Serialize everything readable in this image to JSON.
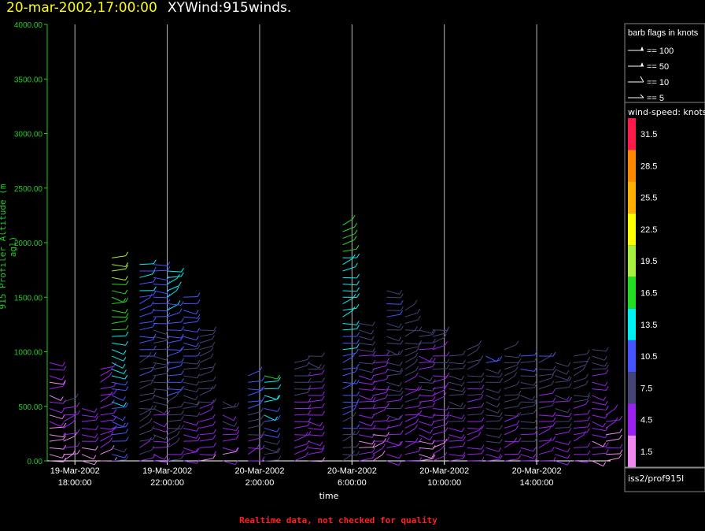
{
  "header": {
    "datetime": "20-mar-2002,17:00:00",
    "title": "XYWind:915winds."
  },
  "legend": {
    "title": "barb flags in knots",
    "items": [
      {
        "label": "== 100",
        "flag": "pennant"
      },
      {
        "label": "== 50",
        "flag": "pennant-small"
      },
      {
        "label": "== 10",
        "flag": "full-barb"
      },
      {
        "label": "== 5",
        "flag": "half-barb"
      }
    ]
  },
  "colorbar": {
    "title": "wind-speed: knots",
    "levels": [
      {
        "value": "31.5",
        "color": "#ff1a4a"
      },
      {
        "value": "28.5",
        "color": "#ff8800"
      },
      {
        "value": "25.5",
        "color": "#ffb000"
      },
      {
        "value": "22.5",
        "color": "#ffff00"
      },
      {
        "value": "19.5",
        "color": "#a8f040"
      },
      {
        "value": "16.5",
        "color": "#22dd22"
      },
      {
        "value": "13.5",
        "color": "#00f0f0"
      },
      {
        "value": "10.5",
        "color": "#4455ff"
      },
      {
        "value": "7.5",
        "color": "#444477"
      },
      {
        "value": "4.5",
        "color": "#9922ee"
      },
      {
        "value": "1.5",
        "color": "#ee88ee"
      }
    ]
  },
  "source_id": "iss2/prof915l",
  "footer_note": "Realtime data, not checked for quality",
  "chart_data": {
    "type": "scatter",
    "title": "XYWind:915winds.",
    "xlabel": "time",
    "ylabel": "915 Profiler Altitude (m agl)",
    "ylim": [
      0,
      4000
    ],
    "yticks": [
      "0.00",
      "500.00",
      "1000.00",
      "1500.00",
      "2000.00",
      "2500.00",
      "3000.00",
      "3500.00",
      "4000.00"
    ],
    "xticks": [
      {
        "date": "19-Mar-2002",
        "time": "18:00:00"
      },
      {
        "date": "19-Mar-2002",
        "time": "22:00:00"
      },
      {
        "date": "20-Mar-2002",
        "time": "2:00:00"
      },
      {
        "date": "20-Mar-2002",
        "time": "6:00:00"
      },
      {
        "date": "20-Mar-2002",
        "time": "10:00:00"
      },
      {
        "date": "20-Mar-2002",
        "time": "14:00:00"
      }
    ],
    "x_hours_range": [
      16.8,
      41.2
    ],
    "x_tick_hours": [
      18,
      22,
      26,
      30,
      34,
      38
    ],
    "grid": "vertical lines at time ticks",
    "profiles": [
      {
        "hour": 16.9,
        "top": 950,
        "speed": 3
      },
      {
        "hour": 17.5,
        "top": 550,
        "speed": 4
      },
      {
        "hour": 18.3,
        "top": 520,
        "speed": 4
      },
      {
        "hour": 19.1,
        "top": 850,
        "speed": 4
      },
      {
        "hour": 19.6,
        "top": 1900,
        "speed": 14
      },
      {
        "hour": 20.8,
        "top": 1850,
        "speed": 9
      },
      {
        "hour": 21.4,
        "top": 1850,
        "speed": 8
      },
      {
        "hour": 22.0,
        "top": 1750,
        "speed": 10
      },
      {
        "hour": 22.7,
        "top": 1550,
        "speed": 8
      },
      {
        "hour": 23.4,
        "top": 1200,
        "speed": 6
      },
      {
        "hour": 24.4,
        "top": 580,
        "speed": 5
      },
      {
        "hour": 25.5,
        "top": 800,
        "speed": 8
      },
      {
        "hour": 26.2,
        "top": 780,
        "speed": 11
      },
      {
        "hour": 27.5,
        "top": 950,
        "speed": 6
      },
      {
        "hour": 28.1,
        "top": 1000,
        "speed": 5
      },
      {
        "hour": 29.6,
        "top": 2200,
        "speed": 12
      },
      {
        "hour": 30.3,
        "top": 1300,
        "speed": 5
      },
      {
        "hour": 30.9,
        "top": 1000,
        "speed": 4
      },
      {
        "hour": 31.5,
        "top": 1600,
        "speed": 7
      },
      {
        "hour": 32.3,
        "top": 1400,
        "speed": 6
      },
      {
        "hour": 32.9,
        "top": 1250,
        "speed": 5
      },
      {
        "hour": 33.5,
        "top": 1200,
        "speed": 5
      },
      {
        "hour": 34.2,
        "top": 1000,
        "speed": 6
      },
      {
        "hour": 35.0,
        "top": 1050,
        "speed": 6
      },
      {
        "hour": 35.8,
        "top": 1000,
        "speed": 7
      },
      {
        "hour": 36.6,
        "top": 1050,
        "speed": 6
      },
      {
        "hour": 37.3,
        "top": 1000,
        "speed": 7
      },
      {
        "hour": 38.1,
        "top": 1000,
        "speed": 6
      },
      {
        "hour": 38.8,
        "top": 950,
        "speed": 6
      },
      {
        "hour": 39.6,
        "top": 1000,
        "speed": 6
      },
      {
        "hour": 40.4,
        "top": 1050,
        "speed": 5
      },
      {
        "hour": 41.0,
        "top": 450,
        "speed": 3
      }
    ]
  }
}
